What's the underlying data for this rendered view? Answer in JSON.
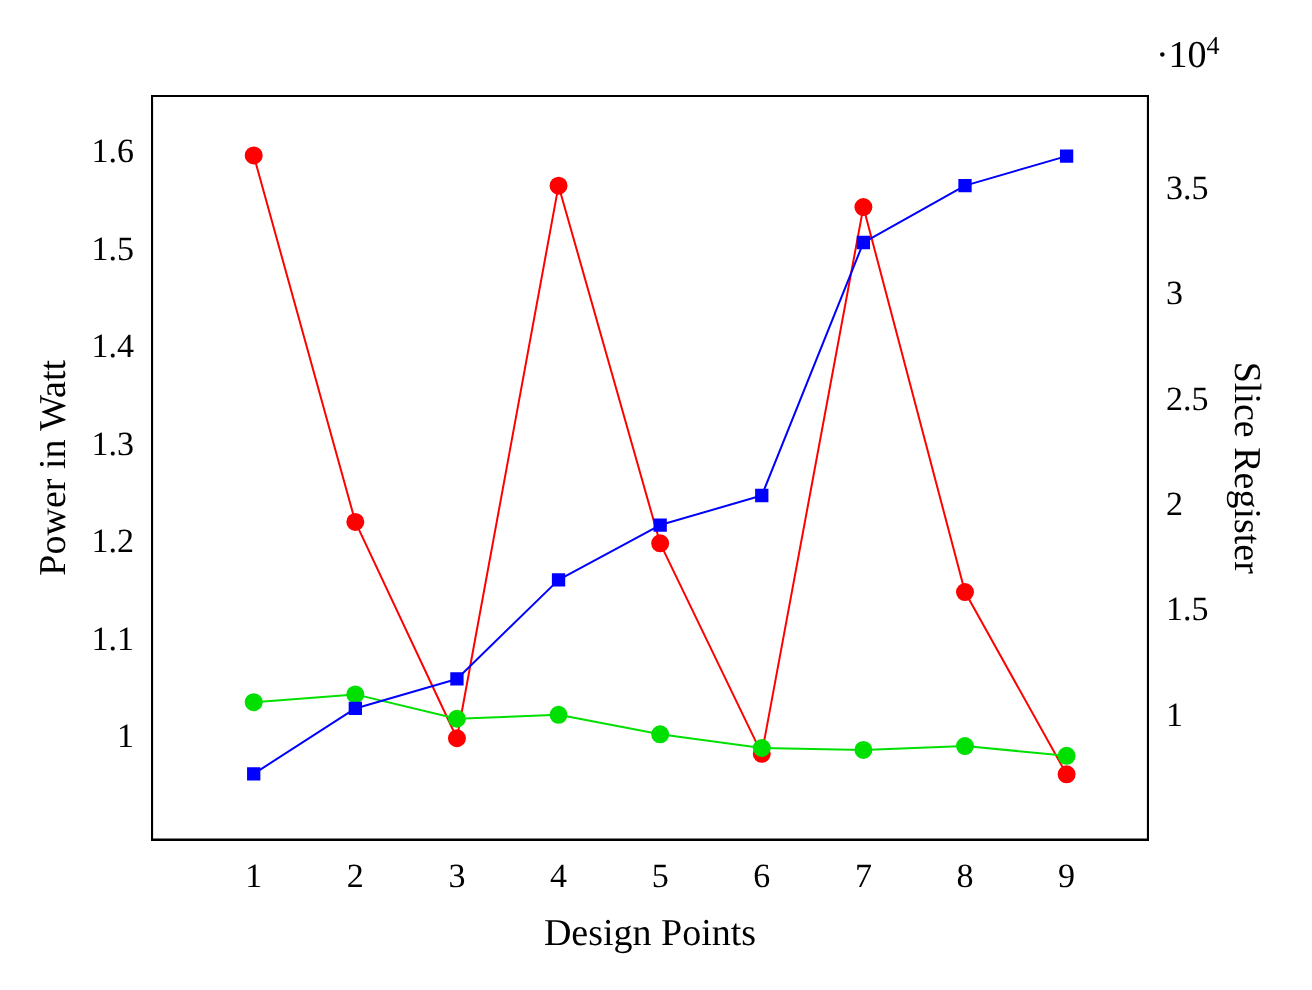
{
  "chart_data": {
    "type": "line",
    "xlabel": "Design Points",
    "ylabel": "Power in Watt",
    "y2label": "Slice Register",
    "x": [
      1,
      2,
      3,
      4,
      5,
      6,
      7,
      8,
      9
    ],
    "series": [
      {
        "color": "#ff0000",
        "marker": "circle",
        "values": [
          1.598,
          1.222,
          1.0,
          1.567,
          1.2,
          0.984,
          1.545,
          1.15,
          0.963
        ]
      },
      {
        "color": "#00e000",
        "marker": "circle",
        "values": [
          1.037,
          1.045,
          1.02,
          1.024,
          1.004,
          0.99,
          0.988,
          0.992,
          0.982
        ]
      },
      {
        "color": "#0000ff",
        "marker": "square",
        "axis": "y2",
        "values": [
          0.73,
          1.04,
          1.18,
          1.65,
          1.91,
          2.05,
          3.25,
          3.52,
          3.66
        ]
      }
    ],
    "xlim": [
      0,
      9.8
    ],
    "xticks": [
      1,
      2,
      3,
      4,
      5,
      6,
      7,
      8,
      9
    ],
    "ylim": [
      0.896,
      1.659
    ],
    "yticks": [
      {
        "value": 1,
        "label": "1"
      },
      1.1,
      1.2,
      1.3,
      1.4,
      1.5,
      1.6
    ],
    "y2lim": [
      0.418,
      3.945
    ],
    "y2ticks": [
      {
        "value": 1,
        "label": "1"
      },
      1.5,
      2,
      {
        "value": 2.5,
        "label": "2.5"
      },
      3,
      3.5
    ],
    "annotations": [
      "·10$^{4}$"
    ],
    "grid": false,
    "legend": false,
    "line_style": "solid"
  }
}
